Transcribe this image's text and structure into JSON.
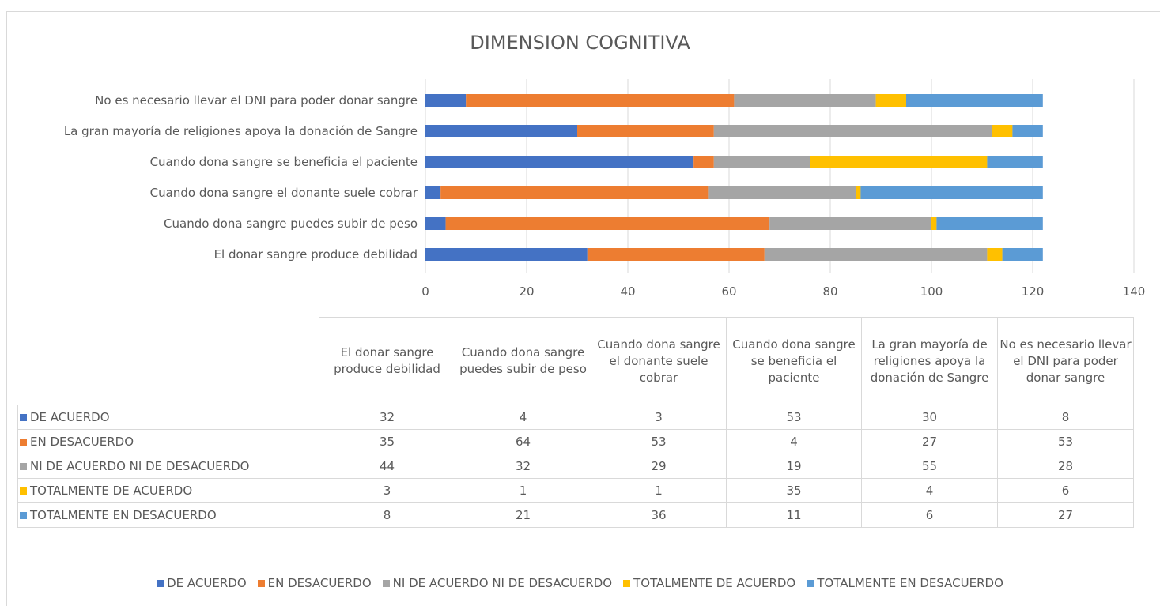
{
  "chart_data": {
    "type": "stacked_barh",
    "title": "DIMENSION COGNITIVA",
    "categories": [
      "El donar sangre produce debilidad",
      "Cuando dona sangre puedes subir de peso",
      "Cuando dona sangre el donante suele cobrar",
      "Cuando dona sangre se beneficia el paciente",
      "La gran mayoría de religiones apoya la donación de Sangre",
      "No es necesario llevar el DNI para poder donar sangre"
    ],
    "series": [
      {
        "name": "DE ACUERDO",
        "color": "#4472c4",
        "values": [
          32,
          4,
          3,
          53,
          30,
          8
        ]
      },
      {
        "name": "EN DESACUERDO",
        "color": "#ed7d31",
        "values": [
          35,
          64,
          53,
          4,
          27,
          53
        ]
      },
      {
        "name": "NI DE ACUERDO NI DE DESACUERDO",
        "color": "#a5a5a5",
        "values": [
          44,
          32,
          29,
          19,
          55,
          28
        ]
      },
      {
        "name": "TOTALMENTE DE ACUERDO",
        "color": "#ffc000",
        "values": [
          3,
          1,
          1,
          35,
          4,
          6
        ]
      },
      {
        "name": "TOTALMENTE EN DESACUERDO",
        "color": "#5b9bd5",
        "values": [
          8,
          21,
          36,
          11,
          6,
          27
        ]
      }
    ],
    "xlim": [
      0,
      140
    ],
    "xticks": [
      0,
      20,
      40,
      60,
      80,
      100,
      120,
      140
    ],
    "grid": true,
    "legend": "bottom"
  }
}
